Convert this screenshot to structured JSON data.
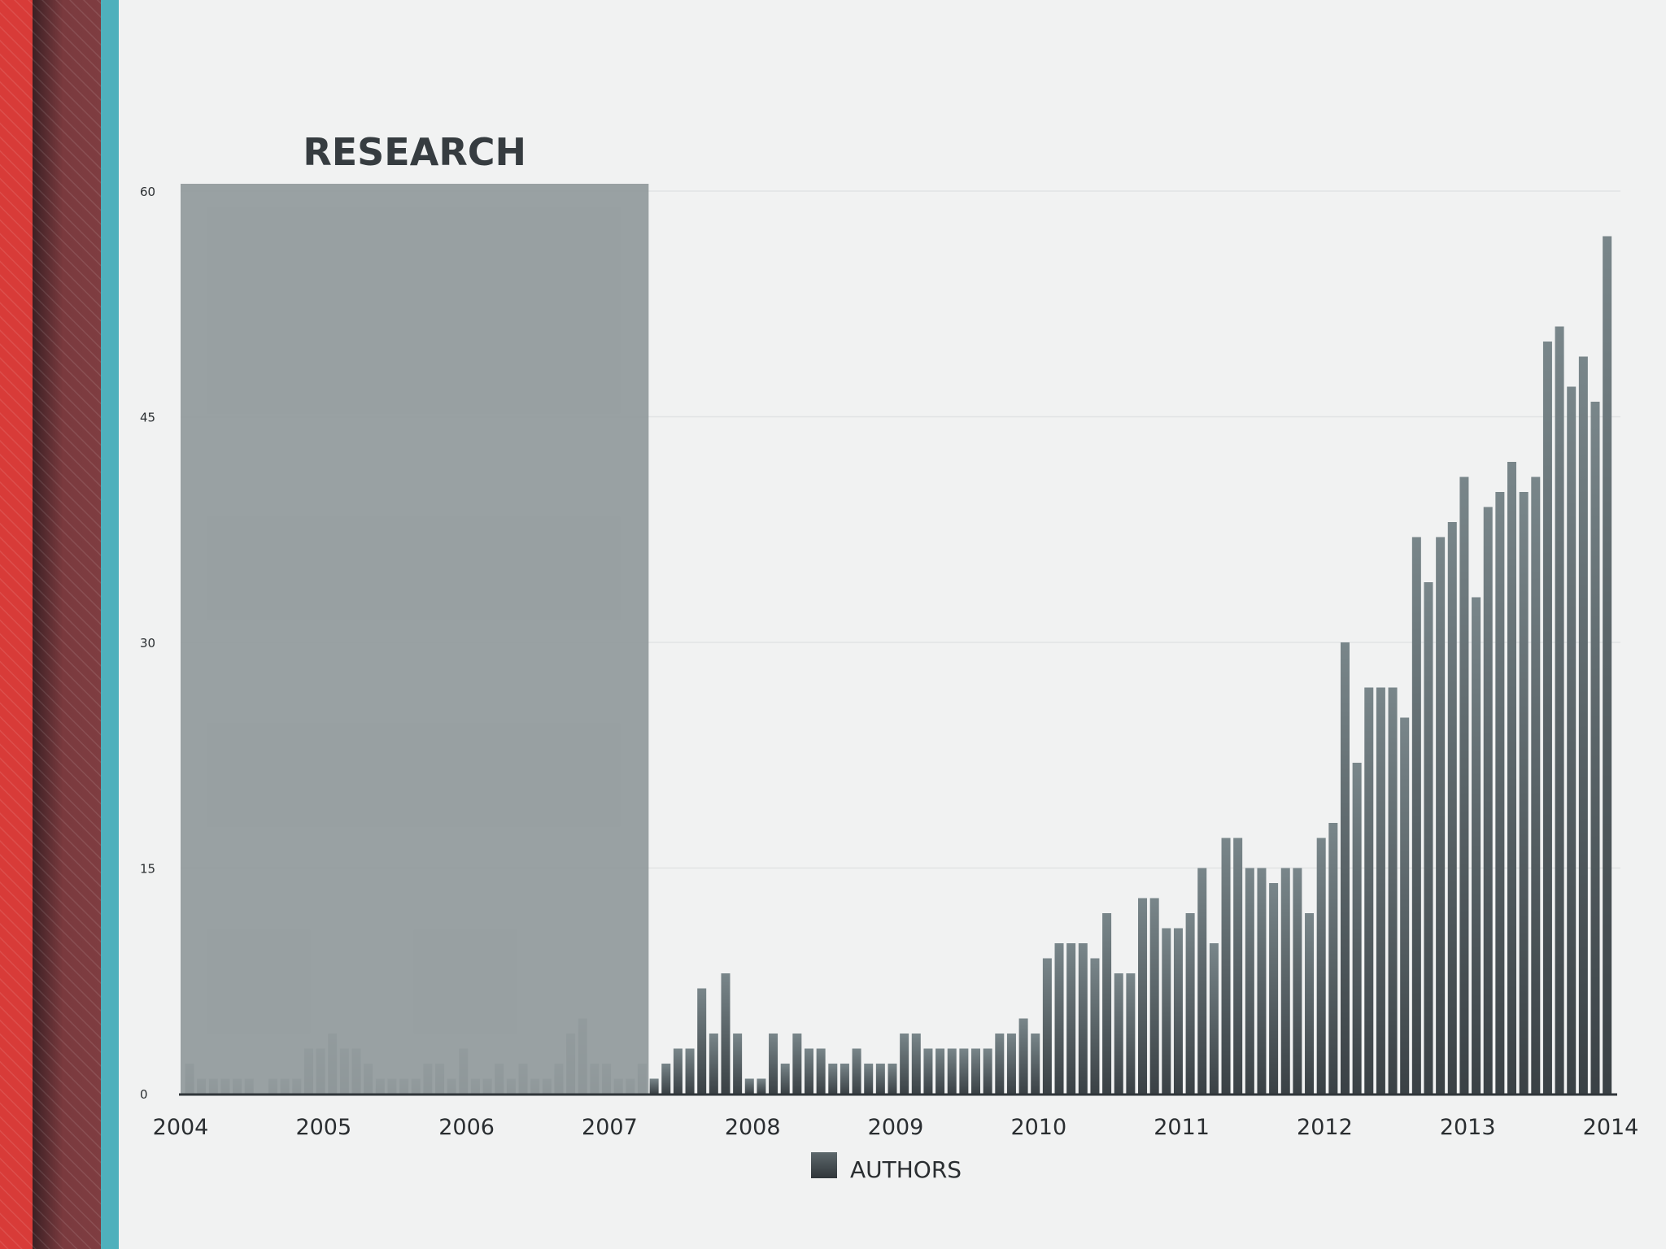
{
  "colors": {
    "background": "#f1f2f2",
    "bar_top": "#79868a",
    "bar_bottom": "#3a4145",
    "highlight": "#939c9e",
    "stripe_red": "#d83b38",
    "stripe_maroon": "#7a3a3e",
    "stripe_teal": "#4fb0bc"
  },
  "chart_data": {
    "type": "bar",
    "title": "RESEARCH",
    "xlabel": "",
    "ylabel": "",
    "ylim": [
      0,
      60
    ],
    "xlim": [
      2004,
      2014
    ],
    "y_ticks": [
      "0",
      "15",
      "30",
      "45",
      "60"
    ],
    "x_ticks": [
      "2004",
      "2005",
      "2006",
      "2007",
      "2008",
      "2009",
      "2010",
      "2011",
      "2012",
      "2013",
      "2014"
    ],
    "grid": true,
    "legend": {
      "position": "bottom-center",
      "entries": [
        "AUTHORS"
      ]
    },
    "highlight_region": {
      "label": "RESEARCH",
      "x_start": 2004.0,
      "x_end": 2007.25
    },
    "series": [
      {
        "name": "AUTHORS",
        "x_start": 2004.0,
        "step": 0.0833,
        "values": [
          2,
          1,
          1,
          1,
          1,
          1,
          0,
          1,
          1,
          1,
          3,
          3,
          4,
          3,
          3,
          2,
          1,
          1,
          1,
          1,
          2,
          2,
          1,
          3,
          1,
          1,
          2,
          1,
          2,
          1,
          1,
          2,
          4,
          5,
          2,
          2,
          1,
          1,
          2,
          1,
          2,
          3,
          3,
          7,
          4,
          8,
          4,
          1,
          1,
          4,
          2,
          4,
          3,
          3,
          2,
          2,
          3,
          2,
          2,
          2,
          4,
          4,
          3,
          3,
          3,
          3,
          3,
          3,
          4,
          4,
          5,
          4,
          9,
          10,
          10,
          10,
          9,
          12,
          8,
          8,
          13,
          13,
          11,
          11,
          12,
          15,
          10,
          17,
          17,
          15,
          15,
          14,
          15,
          15,
          12,
          17,
          18,
          30,
          22,
          27,
          27,
          27,
          25,
          37,
          34,
          37,
          38,
          41,
          33,
          39,
          40,
          42,
          40,
          41,
          50,
          51,
          47,
          49,
          46,
          57
        ]
      }
    ]
  }
}
